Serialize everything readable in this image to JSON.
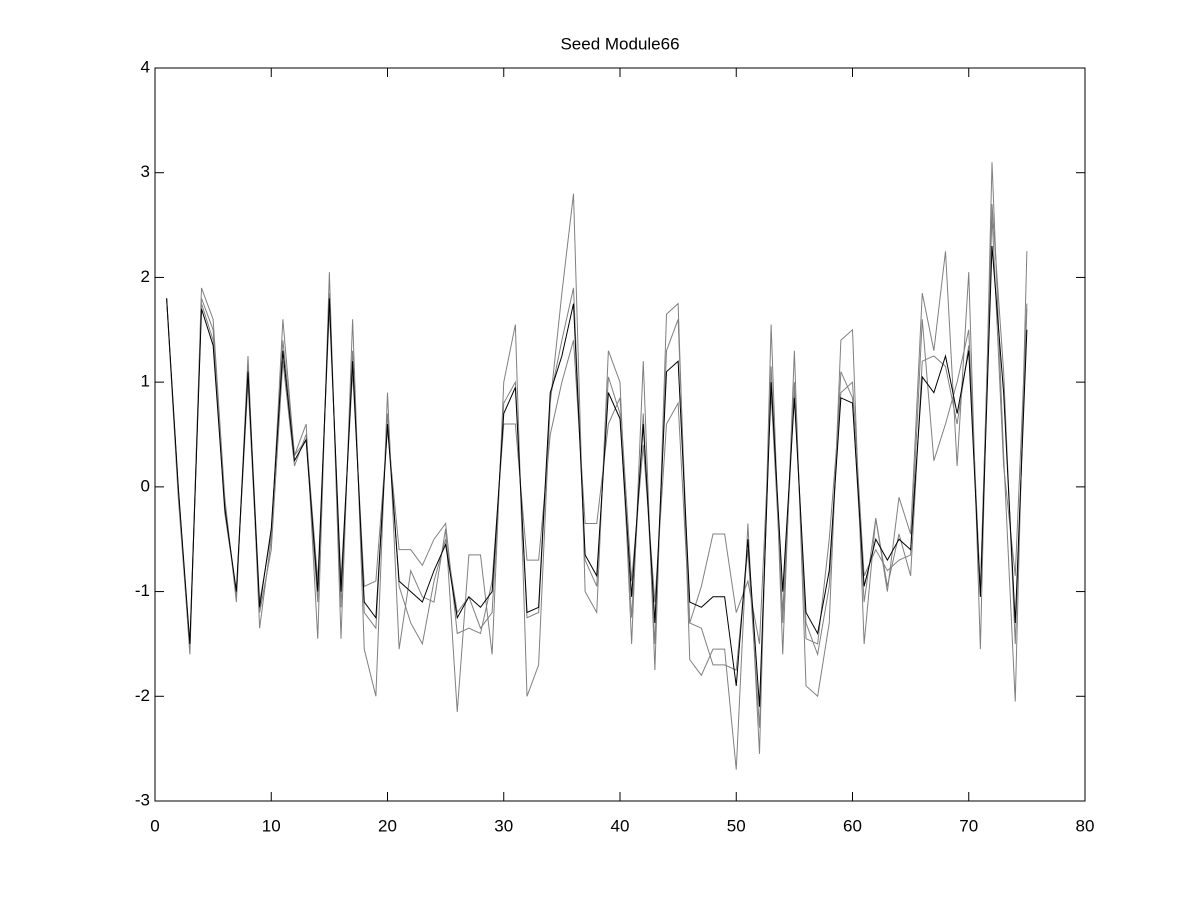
{
  "chart_data": {
    "type": "line",
    "title": "Seed Module66",
    "x": [
      1,
      2,
      3,
      4,
      5,
      6,
      7,
      8,
      9,
      10,
      11,
      12,
      13,
      14,
      15,
      16,
      17,
      18,
      19,
      20,
      21,
      22,
      23,
      24,
      25,
      26,
      27,
      28,
      29,
      30,
      31,
      32,
      33,
      34,
      35,
      36,
      37,
      38,
      39,
      40,
      41,
      42,
      43,
      44,
      45,
      46,
      47,
      48,
      49,
      50,
      51,
      52,
      53,
      54,
      55,
      56,
      57,
      58,
      59,
      60,
      61,
      62,
      63,
      64,
      65,
      66,
      67,
      68,
      69,
      70,
      71,
      72,
      73,
      74,
      75
    ],
    "series": [
      {
        "color": "#808080",
        "values": [
          1.8,
          0.0,
          -1.6,
          1.9,
          1.6,
          -0.1,
          -1.1,
          1.25,
          -1.35,
          -0.5,
          1.6,
          0.3,
          0.6,
          -1.45,
          2.05,
          -1.45,
          1.6,
          -1.55,
          -2.0,
          0.9,
          -1.55,
          -0.8,
          -1.05,
          -1.1,
          -0.4,
          -2.15,
          -0.65,
          -0.65,
          -1.6,
          1.0,
          1.55,
          -2.0,
          -1.7,
          0.8,
          1.85,
          2.8,
          -1.0,
          -1.2,
          1.3,
          1.0,
          -1.5,
          1.2,
          -1.75,
          1.65,
          1.75,
          -1.65,
          -1.8,
          -1.55,
          -1.55,
          -2.7,
          -0.35,
          -2.55,
          1.55,
          -1.6,
          1.3,
          -1.9,
          -2.0,
          -1.3,
          1.4,
          1.5,
          -1.5,
          -0.3,
          -1.0,
          -0.1,
          -0.45,
          1.85,
          1.3,
          2.25,
          0.2,
          2.05,
          -1.55,
          3.1,
          0.3,
          -2.05,
          2.25
        ]
      },
      {
        "color": "#808080",
        "values": [
          1.8,
          -0.05,
          -1.5,
          1.8,
          1.5,
          -0.25,
          -1.0,
          1.0,
          -1.2,
          -0.6,
          1.2,
          0.2,
          0.5,
          -0.9,
          1.7,
          -0.9,
          1.1,
          -0.95,
          -0.9,
          0.55,
          -0.6,
          -0.6,
          -0.75,
          -0.5,
          -0.35,
          -1.4,
          -1.35,
          -1.4,
          -0.9,
          0.6,
          0.6,
          -0.7,
          -0.7,
          0.5,
          1.0,
          1.4,
          -0.35,
          -0.35,
          0.6,
          0.85,
          -0.9,
          0.4,
          -1.1,
          0.6,
          0.8,
          -1.3,
          -0.95,
          -0.45,
          -0.45,
          -1.2,
          -0.9,
          -1.5,
          0.9,
          -1.2,
          1.0,
          -1.45,
          -1.5,
          -0.5,
          0.9,
          1.0,
          -0.85,
          -0.6,
          -0.8,
          -0.7,
          -0.65,
          1.6,
          0.25,
          0.6,
          1.0,
          1.5,
          -1.0,
          2.6,
          0.2,
          -0.85,
          1.75
        ]
      },
      {
        "color": "#808080",
        "values": [
          1.8,
          -0.1,
          -1.55,
          1.75,
          1.4,
          -0.15,
          -1.05,
          1.15,
          -1.1,
          -0.45,
          1.4,
          0.3,
          0.45,
          -1.1,
          1.85,
          -1.15,
          1.3,
          -1.2,
          -1.35,
          0.7,
          -0.95,
          -1.3,
          -1.5,
          -0.9,
          -0.5,
          -1.2,
          -1.05,
          -1.35,
          -1.2,
          0.8,
          1.0,
          -1.25,
          -1.2,
          0.85,
          1.4,
          1.9,
          -0.7,
          -0.95,
          1.05,
          0.7,
          -1.25,
          0.7,
          -1.5,
          1.3,
          1.6,
          -1.3,
          -1.35,
          -1.7,
          -1.7,
          -1.75,
          -0.6,
          -2.3,
          1.15,
          -1.3,
          0.95,
          -1.3,
          -1.6,
          -0.95,
          1.1,
          0.85,
          -1.1,
          -0.3,
          -0.95,
          -0.45,
          -0.85,
          1.2,
          1.25,
          1.15,
          0.6,
          1.35,
          -1.0,
          2.7,
          1.1,
          -1.5,
          1.7
        ]
      },
      {
        "color": "#000000",
        "values": [
          1.8,
          0.0,
          -1.5,
          1.7,
          1.35,
          -0.2,
          -1.0,
          1.1,
          -1.15,
          -0.4,
          1.3,
          0.25,
          0.45,
          -1.0,
          1.8,
          -1.0,
          1.2,
          -1.1,
          -1.25,
          0.6,
          -0.9,
          -1.0,
          -1.1,
          -0.8,
          -0.55,
          -1.25,
          -1.05,
          -1.15,
          -1.0,
          0.7,
          0.95,
          -1.2,
          -1.15,
          0.9,
          1.25,
          1.75,
          -0.65,
          -0.85,
          0.9,
          0.65,
          -1.05,
          0.6,
          -1.3,
          1.1,
          1.2,
          -1.1,
          -1.15,
          -1.05,
          -1.05,
          -1.9,
          -0.5,
          -2.1,
          1.0,
          -1.0,
          0.85,
          -1.2,
          -1.4,
          -0.8,
          0.85,
          0.8,
          -0.95,
          -0.5,
          -0.7,
          -0.5,
          -0.6,
          1.05,
          0.9,
          1.25,
          0.7,
          1.3,
          -1.05,
          2.3,
          0.9,
          -1.3,
          1.5
        ]
      }
    ],
    "xlim": [
      0,
      80
    ],
    "xticks": [
      0,
      10,
      20,
      30,
      40,
      50,
      60,
      70,
      80
    ],
    "ylim": [
      -3,
      4
    ],
    "yticks": [
      -3,
      -2,
      -1,
      0,
      1,
      2,
      3,
      4
    ]
  }
}
